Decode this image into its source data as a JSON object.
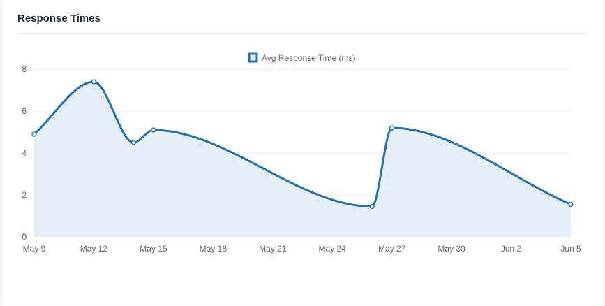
{
  "card": {
    "title": "Response Times"
  },
  "colors": {
    "line": "#2372b0",
    "fill": "#e6eff8",
    "grid": "#ececec"
  },
  "chart_data": {
    "type": "area",
    "title": "",
    "legend": {
      "position": "top-center",
      "entries": [
        "Avg Response Time (ms)"
      ]
    },
    "x_ticks": [
      "May 9",
      "May 12",
      "May 15",
      "May 18",
      "May 21",
      "May 24",
      "May 27",
      "May 30",
      "Jun 2",
      "Jun 5"
    ],
    "y_ticks": [
      "0",
      "2",
      "4",
      "6",
      "8"
    ],
    "ylim": [
      0,
      8
    ],
    "grid": true,
    "series": [
      {
        "name": "Avg Response Time (ms)",
        "x": [
          "May 9",
          "May 12",
          "May 14",
          "May 15",
          "May 26",
          "May 27",
          "Jun 5"
        ],
        "values": [
          4.9,
          7.4,
          4.5,
          5.1,
          1.45,
          5.2,
          1.55
        ]
      }
    ]
  }
}
